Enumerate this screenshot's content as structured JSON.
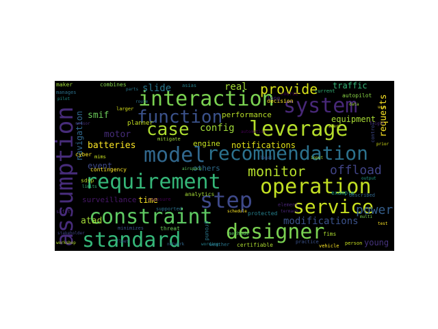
{
  "words": [
    {
      "t": "interaction",
      "c": "#7ad151",
      "f": 30
    },
    {
      "t": "system",
      "c": "#482878",
      "f": 30
    },
    {
      "t": "recommendation",
      "c": "#2c728e",
      "f": 28
    },
    {
      "t": "model",
      "c": "#31688e",
      "f": 30
    },
    {
      "t": "leverage",
      "c": "#b5de2b",
      "f": 30
    },
    {
      "t": "case",
      "c": "#addc30",
      "f": 26
    },
    {
      "t": "function",
      "c": "#3b528b",
      "f": 26
    },
    {
      "t": "assumption",
      "c": "#472c7a",
      "f": 34
    },
    {
      "t": "requirement",
      "c": "#35b779",
      "f": 30
    },
    {
      "t": "operation",
      "c": "#c2df23",
      "f": 30
    },
    {
      "t": "step",
      "c": "#3e4989",
      "f": 32
    },
    {
      "t": "constraint",
      "c": "#5ec962",
      "f": 30
    },
    {
      "t": "service",
      "c": "#c8e020",
      "f": 28
    },
    {
      "t": "standard",
      "c": "#35b779",
      "f": 30
    },
    {
      "t": "designer",
      "c": "#7ad151",
      "f": 30
    },
    {
      "t": "provide",
      "c": "#d8e219",
      "f": 20
    },
    {
      "t": "monitor",
      "c": "#b5de2b",
      "f": 20
    },
    {
      "t": "offload",
      "c": "#414487",
      "f": 18
    },
    {
      "t": "power",
      "c": "#355f8d",
      "f": 18
    },
    {
      "t": "modifications",
      "c": "#3b528b",
      "f": 14
    },
    {
      "t": "requests",
      "c": "#fde725",
      "f": 13
    },
    {
      "t": "config",
      "c": "#a0da39",
      "f": 14
    },
    {
      "t": "slide",
      "c": "#2a788e",
      "f": 14
    },
    {
      "t": "real",
      "c": "#a5db36",
      "f": 14
    },
    {
      "t": "traffic",
      "c": "#35b779",
      "f": 12
    },
    {
      "t": "smif",
      "c": "#6ccd5a",
      "f": 13
    },
    {
      "t": "batteries",
      "c": "#fde725",
      "f": 13
    },
    {
      "t": "motor",
      "c": "#472d7b",
      "f": 13
    },
    {
      "t": "navigation",
      "c": "#31688e",
      "f": 12
    },
    {
      "t": "performance",
      "c": "#b8de29",
      "f": 11
    },
    {
      "t": "equipment",
      "c": "#a8db34",
      "f": 12
    },
    {
      "t": "engine",
      "c": "#c5e021",
      "f": 11
    },
    {
      "t": "notifications",
      "c": "#e2e418",
      "f": 12
    },
    {
      "t": "time",
      "c": "#fde725",
      "f": 12
    },
    {
      "t": "atad",
      "c": "#a2da37",
      "f": 13
    },
    {
      "t": "event",
      "c": "#3e4989",
      "f": 12
    },
    {
      "t": "young",
      "c": "#46337e",
      "f": 12
    },
    {
      "t": "planner",
      "c": "#c5e021",
      "f": 9
    },
    {
      "t": "combines",
      "c": "#84d44b",
      "f": 8
    },
    {
      "t": "autopilot",
      "c": "#8bd646",
      "f": 8
    },
    {
      "t": "others",
      "c": "#2f6c8e",
      "f": 11
    },
    {
      "t": "surveillance",
      "c": "#48186a",
      "f": 11
    },
    {
      "t": "contingency",
      "c": "#fde725",
      "f": 8
    },
    {
      "t": "certifiable",
      "c": "#addc30",
      "f": 8
    },
    {
      "t": "weather",
      "c": "#2a788e",
      "f": 7
    },
    {
      "t": "threat",
      "c": "#6ccd5a",
      "f": 8
    },
    {
      "t": "minimizes",
      "c": "#3b528b",
      "f": 7
    },
    {
      "t": "exposure",
      "c": "#440154",
      "f": 7
    },
    {
      "t": "analytics",
      "c": "#a5db36",
      "f": 8
    },
    {
      "t": "supported",
      "c": "#2c728e",
      "f": 7
    },
    {
      "t": "mitigate",
      "c": "#a2da37",
      "f": 7
    },
    {
      "t": "decision",
      "c": "#fde725",
      "f": 8
    },
    {
      "t": "cyber",
      "c": "#fde725",
      "f": 8
    },
    {
      "t": "sdsp",
      "c": "#b8de29",
      "f": 8
    },
    {
      "t": "mims",
      "c": "#c8e020",
      "f": 7
    },
    {
      "t": "protected",
      "c": "#26828e",
      "f": 8
    },
    {
      "t": "element",
      "c": "#482475",
      "f": 7
    },
    {
      "t": "described",
      "c": "#31688e",
      "f": 7
    },
    {
      "t": "fims",
      "c": "#addc30",
      "f": 8
    },
    {
      "t": "person",
      "c": "#c8e020",
      "f": 7
    },
    {
      "t": "vehicle",
      "c": "#fde725",
      "f": 7
    },
    {
      "t": "practice",
      "c": "#3b528b",
      "f": 7
    },
    {
      "t": "long",
      "c": "#482878",
      "f": 8
    },
    {
      "t": "asias",
      "c": "#26828e",
      "f": 7
    },
    {
      "t": "larger",
      "c": "#d8e219",
      "f": 7
    },
    {
      "t": "maker",
      "c": "#a0da39",
      "f": 8
    },
    {
      "t": "course",
      "c": "#440154",
      "f": 7
    },
    {
      "t": "current",
      "c": "#35b779",
      "f": 7
    },
    {
      "t": "safety",
      "c": "#482878",
      "f": 7
    },
    {
      "t": "ground",
      "c": "#2a788e",
      "f": 8
    },
    {
      "t": "control",
      "c": "#3e4989",
      "f": 7
    },
    {
      "t": "methods",
      "c": "#5ec962",
      "f": 7
    },
    {
      "t": "example",
      "c": "#1f9e89",
      "f": 8
    },
    {
      "t": "manages",
      "c": "#2c728e",
      "f": 7
    },
    {
      "t": "workshop",
      "c": "#b5de2b",
      "f": 6
    },
    {
      "t": "pilot",
      "c": "#21918c",
      "f": 6
    },
    {
      "t": "fleet",
      "c": "#3b528b",
      "f": 6
    },
    {
      "t": "data",
      "c": "#a0da39",
      "f": 6
    },
    {
      "t": "flight",
      "c": "#482878",
      "f": 6
    },
    {
      "t": "schedule",
      "c": "#fde725",
      "f": 6
    },
    {
      "t": "termach",
      "c": "#482475",
      "f": 6
    },
    {
      "t": "wording",
      "c": "#26828e",
      "f": 6
    },
    {
      "t": "network",
      "c": "#31688e",
      "f": 6
    },
    {
      "t": "prior",
      "c": "#d8e219",
      "f": 6
    },
    {
      "t": "multi",
      "c": "#7ad151",
      "f": 6
    },
    {
      "t": "test",
      "c": "#fde725",
      "f": 6
    },
    {
      "t": "stakeholder",
      "c": "#414487",
      "f": 6
    },
    {
      "t": "parts",
      "c": "#2a788e",
      "f": 6
    },
    {
      "t": "airspace",
      "c": "#5ec962",
      "f": 6
    },
    {
      "t": "automation",
      "c": "#440154",
      "f": 6
    },
    {
      "t": "limits",
      "c": "#35b779",
      "f": 6
    },
    {
      "t": "legal",
      "c": "#3b528b",
      "f": 6
    },
    {
      "t": "input",
      "c": "#a5db36",
      "f": 6
    },
    {
      "t": "use",
      "c": "#fde725",
      "f": 6
    },
    {
      "t": "route",
      "c": "#2c728e",
      "f": 6
    },
    {
      "t": "alert",
      "c": "#c8e020",
      "f": 6
    },
    {
      "t": "sensor",
      "c": "#472d7b",
      "f": 6
    },
    {
      "t": "output",
      "c": "#1f9e89",
      "f": 6
    }
  ]
}
